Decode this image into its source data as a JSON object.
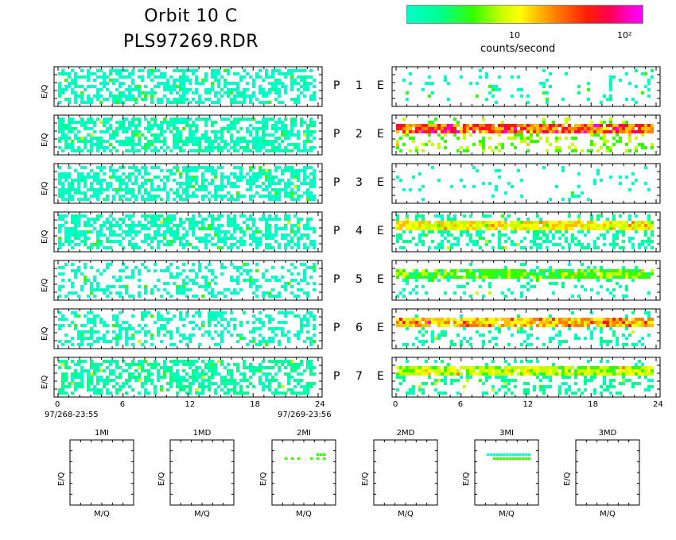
{
  "header": {
    "title_line1": "Orbit 10 C",
    "title_line2": "PLS97269.RDR"
  },
  "colorbar": {
    "tick_labels": [
      "10",
      "10²"
    ],
    "label": "counts/second",
    "colors": [
      "#00ffc8",
      "#00ff90",
      "#33ff00",
      "#c8ff00",
      "#ffff00",
      "#ffc000",
      "#ff8000",
      "#ff2000",
      "#ff0050",
      "#ff00ff"
    ]
  },
  "panel_labels": [
    {
      "p": "P",
      "n": "1",
      "e": "E"
    },
    {
      "p": "P",
      "n": "2",
      "e": "E"
    },
    {
      "p": "P",
      "n": "3",
      "e": "E"
    },
    {
      "p": "P",
      "n": "4",
      "e": "E"
    },
    {
      "p": "P",
      "n": "5",
      "e": "E"
    },
    {
      "p": "P",
      "n": "6",
      "e": "E"
    },
    {
      "p": "P",
      "n": "7",
      "e": "E"
    }
  ],
  "bottom_axis": {
    "left_ticks": [
      "0",
      "6",
      "12",
      "18",
      "24"
    ],
    "right_ticks": [
      "0",
      "6",
      "12",
      "18",
      "24"
    ],
    "start_time": "97/268-23:55",
    "end_time": "97/269-23:56"
  },
  "small_panels": [
    {
      "title": "1MI",
      "xlabel": "M/Q",
      "ylabel": "E/Q"
    },
    {
      "title": "1MD",
      "xlabel": "M/Q",
      "ylabel": "E/Q"
    },
    {
      "title": "2MI",
      "xlabel": "M/Q",
      "ylabel": "E/Q"
    },
    {
      "title": "2MD",
      "xlabel": "M/Q",
      "ylabel": "E/Q"
    },
    {
      "title": "3MI",
      "xlabel": "M/Q",
      "ylabel": "E/Q"
    },
    {
      "title": "3MD",
      "xlabel": "M/Q",
      "ylabel": "E/Q"
    }
  ],
  "chart_data": {
    "type": "heatmap",
    "title": "Orbit 10 C",
    "subtitle": "PLS97269.RDR",
    "xlabel": "",
    "ylabel": "E/Q",
    "xlim": [
      0,
      24
    ],
    "colorbar_label": "counts/second",
    "colorbar_ticks": [
      "10",
      "10²"
    ],
    "panels_left": [
      {
        "panel": "P 1",
        "density": 0.52,
        "level": 0.05
      },
      {
        "panel": "P 2",
        "density": 0.62,
        "level": 0.08
      },
      {
        "panel": "P 3",
        "density": 0.55,
        "level": 0.05
      },
      {
        "panel": "P 4",
        "density": 0.55,
        "level": 0.06
      },
      {
        "panel": "P 5",
        "density": 0.32,
        "level": 0.04
      },
      {
        "panel": "P 6",
        "density": 0.38,
        "level": 0.05
      },
      {
        "panel": "P 7",
        "density": 0.5,
        "level": 0.12
      }
    ],
    "panels_right": [
      {
        "panel": "E 1",
        "density": 0.1,
        "level": 0.05
      },
      {
        "panel": "E 2",
        "density": 0.35,
        "level": 0.3,
        "band_level": 0.7
      },
      {
        "panel": "E 3",
        "density": 0.08,
        "level": 0.04
      },
      {
        "panel": "E 4",
        "density": 0.55,
        "level": 0.1,
        "band_level": 0.45
      },
      {
        "panel": "E 5",
        "density": 0.2,
        "level": 0.08,
        "band_level": 0.25
      },
      {
        "panel": "E 6",
        "density": 0.25,
        "level": 0.1,
        "band_level": 0.55
      },
      {
        "panel": "E 7",
        "density": 0.4,
        "level": 0.12,
        "band_level": 0.35
      }
    ],
    "mass_panels": [
      {
        "name": "1MI",
        "counts": 0
      },
      {
        "name": "1MD",
        "counts": 0
      },
      {
        "name": "2MI",
        "counts": 1
      },
      {
        "name": "2MD",
        "counts": 0
      },
      {
        "name": "3MI",
        "counts": 1
      },
      {
        "name": "3MD",
        "counts": 0
      }
    ]
  }
}
